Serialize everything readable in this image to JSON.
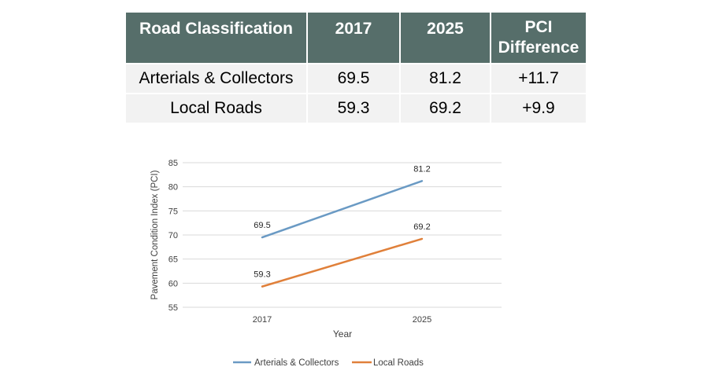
{
  "table": {
    "headers": [
      "Road Classification",
      "2017",
      "2025",
      "PCI Difference"
    ],
    "header_pci_line1": "PCI",
    "header_pci_line2": "Difference",
    "rows": [
      [
        "Arterials & Collectors",
        "69.5",
        "81.2",
        "+11.7"
      ],
      [
        "Local Roads",
        "59.3",
        "69.2",
        "+9.9"
      ]
    ],
    "colors": {
      "header_bg": "#566e6a",
      "header_text": "#ffffff",
      "cell_bg": "#f2f2f2"
    }
  },
  "chart_data": {
    "type": "line",
    "x": [
      "2017",
      "2025"
    ],
    "xlabel": "Year",
    "ylabel": "Pavement Condition Index (PCI)",
    "ylim": [
      55,
      85
    ],
    "yticks": [
      55,
      60,
      65,
      70,
      75,
      80,
      85
    ],
    "grid": true,
    "legend": "bottom",
    "series": [
      {
        "name": "Arterials & Collectors",
        "values": [
          69.5,
          81.2
        ],
        "labels": [
          "69.5",
          "81.2"
        ],
        "color": "#6a9ac4"
      },
      {
        "name": "Local Roads",
        "values": [
          59.3,
          69.2
        ],
        "labels": [
          "59.3",
          "69.2"
        ],
        "color": "#e0803a"
      }
    ]
  }
}
